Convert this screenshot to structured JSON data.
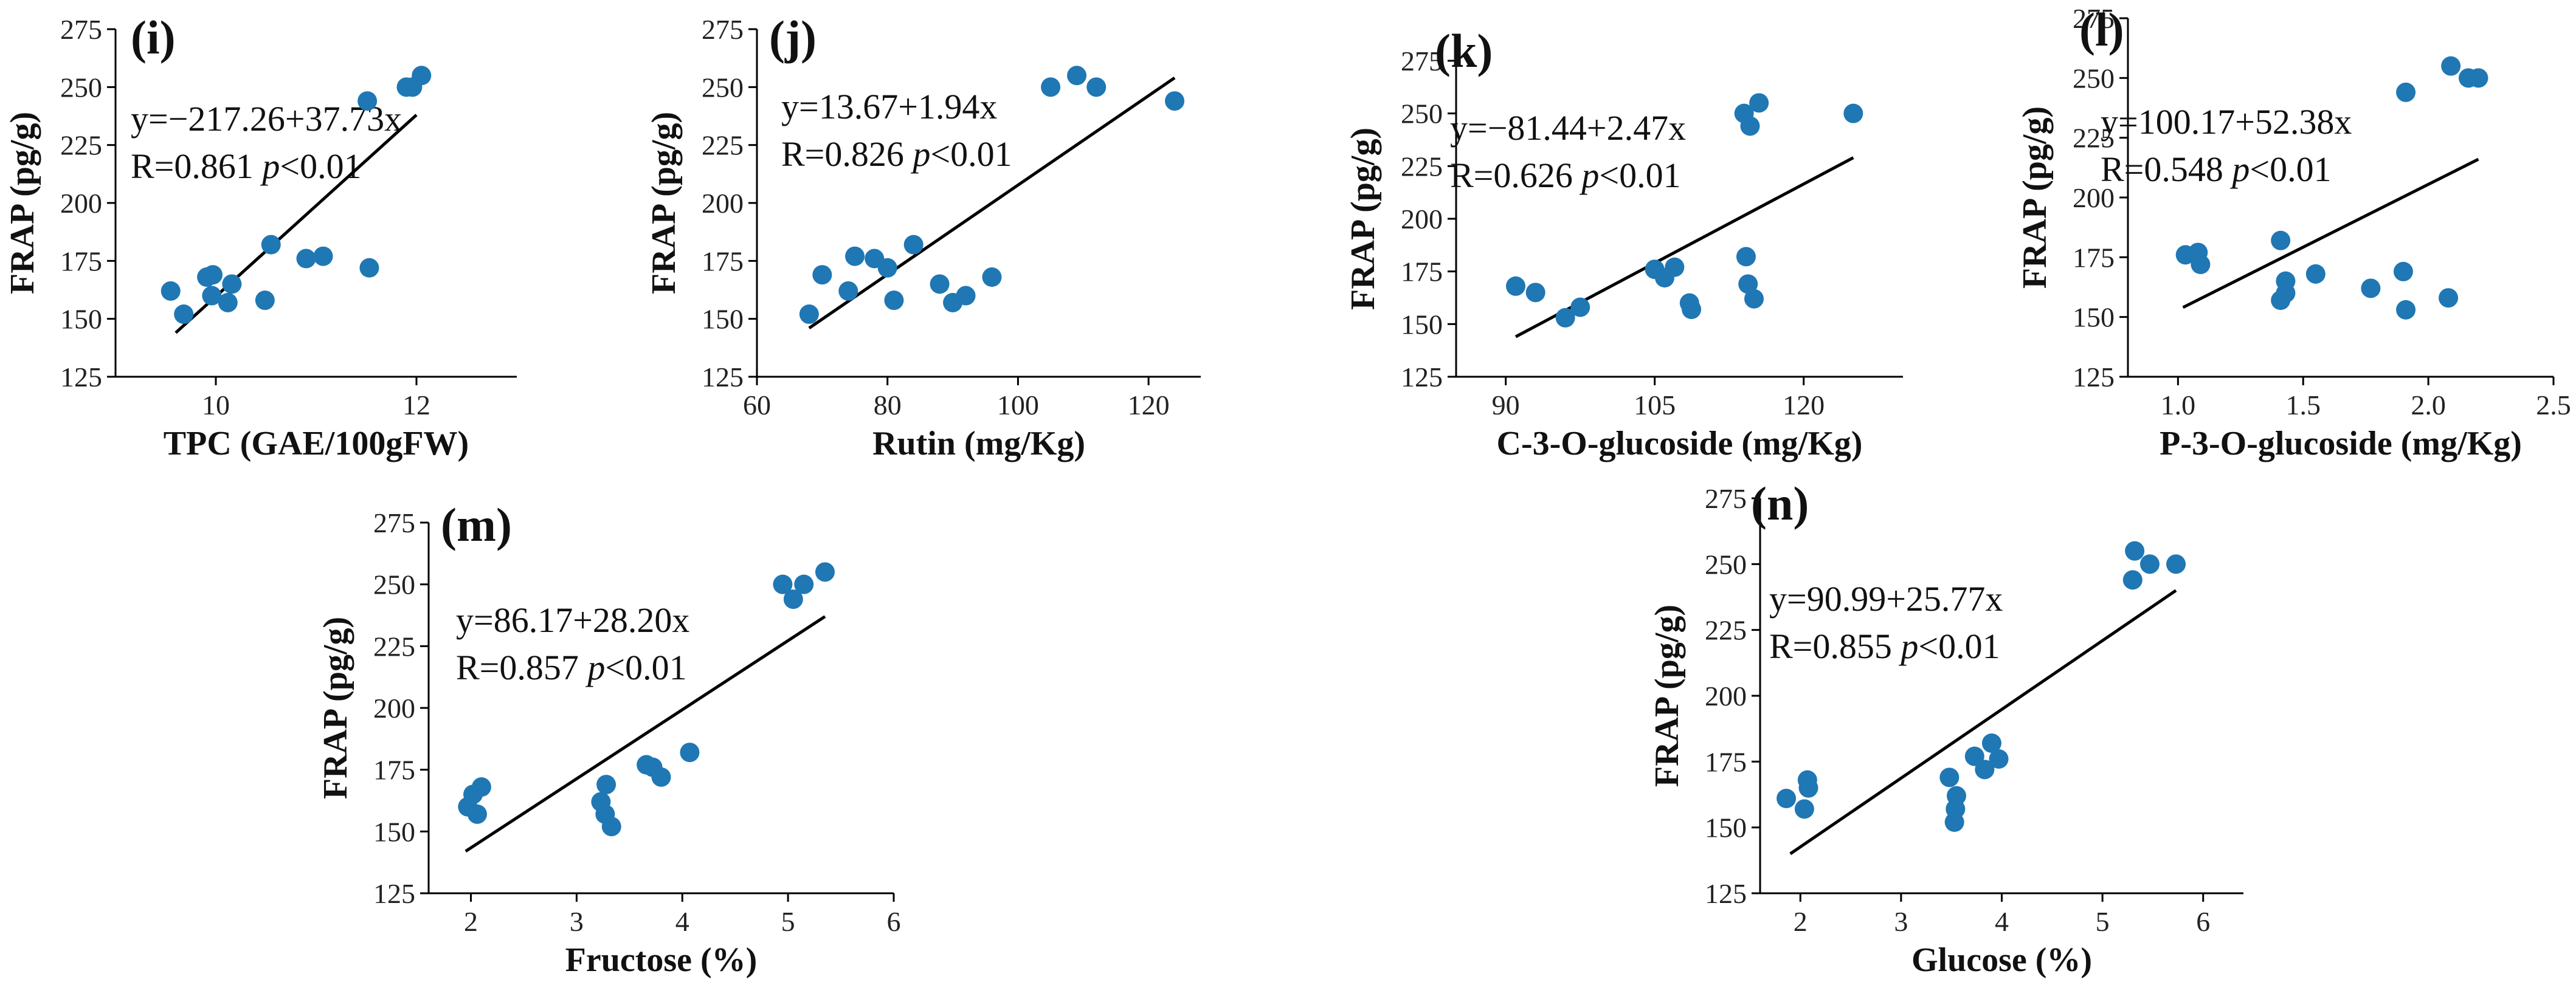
{
  "colors": {
    "point": "#1f77b4",
    "axis": "#000000",
    "line": "#000000"
  },
  "chart_data": [
    {
      "type": "scatter",
      "panel": "(i)",
      "xlabel": "TPC (GAE/100gFW)",
      "ylabel": "FRAP (pg/g)",
      "xlim": [
        9.0,
        13.0
      ],
      "ylim": [
        125,
        275
      ],
      "xticks": [
        "10",
        "12"
      ],
      "xtick_values": [
        10,
        12
      ],
      "yticks": [
        "125",
        "150",
        "175",
        "200",
        "225",
        "250",
        "275"
      ],
      "ytick_values": [
        125,
        150,
        175,
        200,
        225,
        250,
        275
      ],
      "equation": "y=−217.26+37.73x",
      "r_text": "R=0.861 ",
      "p_italic": "p",
      "p_text": "<0.01",
      "fit_line": {
        "x": [
          9.6,
          12.0
        ],
        "y": [
          144,
          238
        ]
      },
      "points": {
        "x": [
          9.55,
          9.68,
          9.91,
          9.97,
          9.96,
          10.12,
          10.16,
          10.49,
          10.55,
          10.9,
          11.07,
          11.53,
          11.51,
          11.9,
          11.96,
          12.05
        ],
        "y": [
          162,
          152,
          168,
          169,
          160,
          157,
          165,
          158,
          182,
          176,
          177,
          172,
          244,
          250,
          250,
          255
        ]
      }
    },
    {
      "type": "scatter",
      "panel": "(j)",
      "xlabel": "Rutin (mg/Kg)",
      "ylabel": "FRAP (pg/g)",
      "xlim": [
        60,
        128
      ],
      "ylim": [
        125,
        275
      ],
      "xticks": [
        "60",
        "80",
        "100",
        "120"
      ],
      "xtick_values": [
        60,
        80,
        100,
        120
      ],
      "yticks": [
        "125",
        "150",
        "175",
        "200",
        "225",
        "250",
        "275"
      ],
      "ytick_values": [
        125,
        150,
        175,
        200,
        225,
        250,
        275
      ],
      "equation": "y=13.67+1.94x",
      "r_text": "R=0.826 ",
      "p_italic": "p",
      "p_text": "<0.01",
      "fit_line": {
        "x": [
          68,
          124
        ],
        "y": [
          146,
          254
        ]
      },
      "points": {
        "x": [
          68,
          70,
          74,
          75,
          78,
          80,
          81,
          84,
          88,
          90,
          92,
          96,
          105,
          109,
          112,
          124
        ],
        "y": [
          152,
          169,
          162,
          177,
          176,
          172,
          158,
          182,
          165,
          157,
          160,
          168,
          250,
          255,
          250,
          244
        ]
      }
    },
    {
      "type": "scatter",
      "panel": "(k)",
      "xlabel": "C-3-O-glucoside (mg/Kg)",
      "ylabel": "FRAP (pg/g)",
      "xlim": [
        85,
        130
      ],
      "ylim": [
        125,
        275
      ],
      "xticks": [
        "90",
        "105",
        "120"
      ],
      "xtick_values": [
        90,
        105,
        120
      ],
      "yticks": [
        "125",
        "150",
        "175",
        "200",
        "225",
        "250",
        "275"
      ],
      "ytick_values": [
        125,
        150,
        175,
        200,
        225,
        250,
        275
      ],
      "equation": "y=−81.44+2.47x",
      "r_text": "R=0.626 ",
      "p_italic": "p",
      "p_text": "<0.01",
      "fit_line": {
        "x": [
          91,
          125
        ],
        "y": [
          144,
          229
        ]
      },
      "points": {
        "x": [
          91,
          93,
          96,
          97.5,
          105,
          106,
          107,
          108.5,
          108.7,
          114,
          114.2,
          114.4,
          114.6,
          115,
          115.5,
          125
        ],
        "y": [
          168,
          165,
          153,
          158,
          176,
          172,
          177,
          160,
          157,
          250,
          182,
          169,
          244,
          162,
          255,
          250
        ]
      }
    },
    {
      "type": "scatter",
      "panel": "(l)",
      "xlabel": "P-3-O-glucoside (mg/Kg)",
      "ylabel": "FRAP (pg/g)",
      "xlim": [
        0.8,
        2.5
      ],
      "ylim": [
        125,
        275
      ],
      "xticks": [
        "1.0",
        "1.5",
        "2.0",
        "2.5"
      ],
      "xtick_values": [
        1.0,
        1.5,
        2.0,
        2.5
      ],
      "yticks": [
        "125",
        "150",
        "175",
        "200",
        "225",
        "250",
        "275"
      ],
      "ytick_values": [
        125,
        150,
        175,
        200,
        225,
        250,
        275
      ],
      "equation": "y=100.17+52.38x",
      "r_text": "R=0.548  ",
      "p_italic": "p",
      "p_text": "<0.01",
      "fit_line": {
        "x": [
          1.02,
          2.2
        ],
        "y": [
          154,
          216
        ]
      },
      "points": {
        "x": [
          1.03,
          1.08,
          1.09,
          1.41,
          1.41,
          1.43,
          1.43,
          1.55,
          1.77,
          1.9,
          1.91,
          1.91,
          2.08,
          2.09,
          2.16,
          2.2
        ],
        "y": [
          176,
          177,
          172,
          182,
          157,
          160,
          165,
          168,
          162,
          169,
          153,
          244,
          158,
          255,
          250,
          250
        ]
      }
    },
    {
      "type": "scatter",
      "panel": "(m)",
      "xlabel": "Fructose (%)",
      "ylabel": "FRAP (pg/g)",
      "xlim": [
        1.6,
        6.0
      ],
      "ylim": [
        125,
        275
      ],
      "xticks": [
        "2",
        "3",
        "4",
        "5",
        "6"
      ],
      "xtick_values": [
        2,
        3,
        4,
        5,
        6
      ],
      "yticks": [
        "125",
        "150",
        "175",
        "200",
        "225",
        "250",
        "275"
      ],
      "ytick_values": [
        125,
        150,
        175,
        200,
        225,
        250,
        275
      ],
      "equation": "y=86.17+28.20x",
      "r_text": "R=0.857  ",
      "p_italic": "p",
      "p_text": "<0.01",
      "fit_line": {
        "x": [
          1.95,
          5.35
        ],
        "y": [
          142,
          237
        ]
      },
      "points": {
        "x": [
          1.97,
          2.02,
          2.06,
          2.1,
          3.23,
          3.27,
          3.28,
          3.33,
          3.66,
          3.72,
          3.8,
          4.07,
          4.95,
          5.05,
          5.15,
          5.35
        ],
        "y": [
          160,
          165,
          157,
          168,
          162,
          157,
          169,
          152,
          177,
          176,
          172,
          182,
          250,
          244,
          250,
          255
        ]
      }
    },
    {
      "type": "scatter",
      "panel": "(n)",
      "xlabel": "Glucose (%)",
      "ylabel": "FRAP (pg/g)",
      "xlim": [
        1.6,
        6.4
      ],
      "ylim": [
        125,
        275
      ],
      "xticks": [
        "2",
        "3",
        "4",
        "5",
        "6"
      ],
      "xtick_values": [
        2,
        3,
        4,
        5,
        6
      ],
      "yticks": [
        "125",
        "150",
        "175",
        "200",
        "225",
        "250",
        "275"
      ],
      "ytick_values": [
        125,
        150,
        175,
        200,
        225,
        250,
        275
      ],
      "equation": "y=90.99+25.77x",
      "r_text": "R=0.855  ",
      "p_italic": "p",
      "p_text": "<0.01",
      "fit_line": {
        "x": [
          1.9,
          5.73
        ],
        "y": [
          140,
          240
        ]
      },
      "points": {
        "x": [
          1.86,
          2.04,
          2.07,
          2.08,
          3.48,
          3.53,
          3.54,
          3.55,
          3.73,
          3.83,
          3.9,
          3.97,
          5.3,
          5.32,
          5.47,
          5.73
        ],
        "y": [
          161,
          157,
          168,
          165,
          169,
          152,
          157,
          162,
          177,
          172,
          182,
          176,
          244,
          255,
          250,
          250
        ]
      }
    }
  ]
}
